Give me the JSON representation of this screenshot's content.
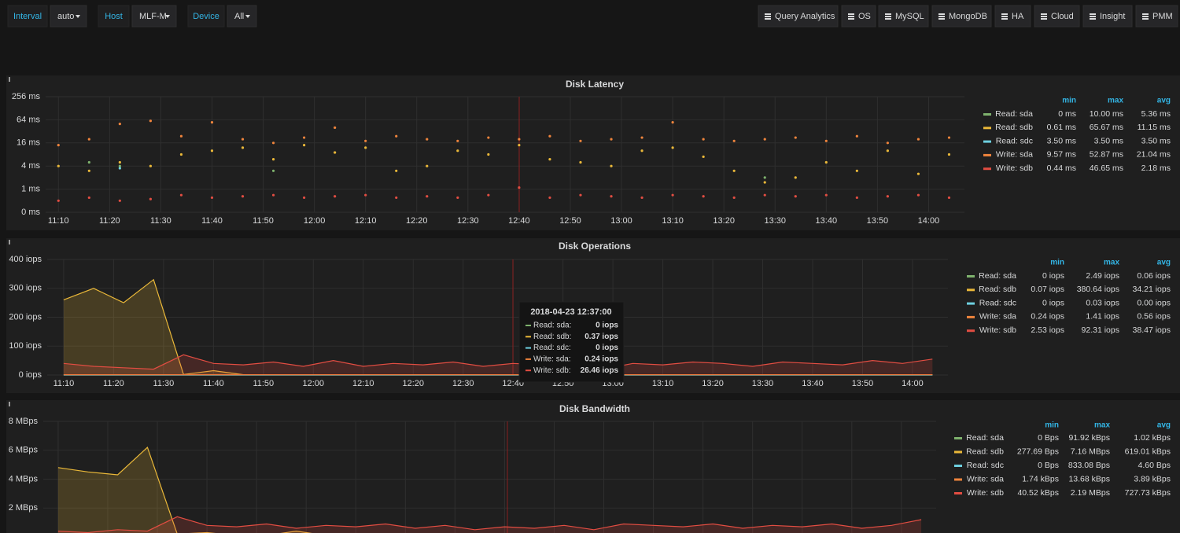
{
  "variables": [
    {
      "name": "Interval",
      "value": "auto"
    },
    {
      "name": "Host",
      "value": "MLF-M"
    },
    {
      "name": "Device",
      "value": "All"
    }
  ],
  "links": [
    "Query Analytics",
    "OS",
    "MySQL",
    "MongoDB",
    "HA",
    "Cloud",
    "Insight",
    "PMM"
  ],
  "panels": [
    {
      "chart_data": {
        "type": "scatter",
        "title": "Disk Latency",
        "yscale": "log",
        "x": [
          670,
          676,
          682,
          688,
          694,
          700,
          706,
          712,
          718,
          724,
          730,
          736,
          742,
          748,
          754,
          760,
          766,
          772,
          778,
          784,
          790,
          796,
          802,
          808,
          814,
          820,
          826,
          832,
          838,
          844
        ],
        "xlim": [
          667.5,
          847
        ],
        "xticks": [
          {
            "value": 670,
            "label": "11:10"
          },
          {
            "value": 680,
            "label": "11:20"
          },
          {
            "value": 690,
            "label": "11:30"
          },
          {
            "value": 700,
            "label": "11:40"
          },
          {
            "value": 710,
            "label": "11:50"
          },
          {
            "value": 720,
            "label": "12:00"
          },
          {
            "value": 730,
            "label": "12:10"
          },
          {
            "value": 740,
            "label": "12:20"
          },
          {
            "value": 750,
            "label": "12:30"
          },
          {
            "value": 760,
            "label": "12:40"
          },
          {
            "value": 770,
            "label": "12:50"
          },
          {
            "value": 780,
            "label": "13:00"
          },
          {
            "value": 790,
            "label": "13:10"
          },
          {
            "value": 800,
            "label": "13:20"
          },
          {
            "value": 810,
            "label": "13:30"
          },
          {
            "value": 820,
            "label": "13:40"
          },
          {
            "value": 830,
            "label": "13:50"
          },
          {
            "value": 840,
            "label": "14:00"
          }
        ],
        "ylim": [
          0.25,
          256
        ],
        "yticks": [
          {
            "value": 0.25,
            "label": "0 ms"
          },
          {
            "value": 1,
            "label": "1 ms"
          },
          {
            "value": 4,
            "label": "4 ms"
          },
          {
            "value": 16,
            "label": "16 ms"
          },
          {
            "value": 64,
            "label": "64 ms"
          },
          {
            "value": 256,
            "label": "256 ms"
          }
        ],
        "series": [
          {
            "name": "Read: sda",
            "color": "#7eb26d",
            "values": [
              null,
              5,
              4,
              null,
              null,
              null,
              null,
              3,
              null,
              null,
              null,
              null,
              null,
              null,
              null,
              null,
              null,
              null,
              null,
              null,
              null,
              null,
              null,
              2,
              null,
              null,
              null,
              null,
              null,
              null
            ]
          },
          {
            "name": "Read: sdb",
            "color": "#eab839",
            "values": [
              4,
              3,
              5,
              4,
              8,
              10,
              12,
              6,
              14,
              9,
              12,
              3,
              4,
              10,
              8,
              14,
              6,
              5,
              4,
              10,
              12,
              7,
              3,
              1.5,
              2,
              5,
              3,
              10,
              2.5,
              8
            ]
          },
          {
            "name": "Read: sdc",
            "color": "#6ed0e0",
            "values": [
              null,
              null,
              3.5,
              null,
              null,
              null,
              null,
              null,
              null,
              null,
              null,
              null,
              null,
              null,
              null,
              null,
              null,
              null,
              null,
              null,
              null,
              null,
              null,
              null,
              null,
              null,
              null,
              null,
              null,
              null
            ]
          },
          {
            "name": "Write: sda",
            "color": "#ef843c",
            "values": [
              14,
              20,
              50,
              60,
              24,
              55,
              20,
              16,
              22,
              40,
              18,
              24,
              20,
              18,
              22,
              20,
              24,
              18,
              20,
              22,
              55,
              20,
              18,
              20,
              22,
              18,
              24,
              16,
              20,
              22
            ]
          },
          {
            "name": "Write: sdb",
            "color": "#e24d42",
            "values": [
              0.5,
              0.6,
              0.5,
              0.55,
              0.7,
              0.6,
              0.65,
              0.7,
              0.6,
              0.65,
              0.7,
              0.6,
              0.65,
              0.6,
              0.7,
              1.1,
              0.6,
              0.7,
              0.65,
              0.6,
              0.7,
              0.65,
              0.6,
              0.7,
              0.65,
              0.7,
              0.6,
              0.65,
              0.7,
              0.6
            ]
          }
        ]
      },
      "legend": {
        "columns": [
          "min",
          "max",
          "avg"
        ],
        "rows": [
          [
            "0 ms",
            "10.00 ms",
            "5.36 ms"
          ],
          [
            "0.61 ms",
            "65.67 ms",
            "11.15 ms"
          ],
          [
            "3.50 ms",
            "3.50 ms",
            "3.50 ms"
          ],
          [
            "9.57 ms",
            "52.87 ms",
            "21.04 ms"
          ],
          [
            "0.44 ms",
            "46.65 ms",
            "2.18 ms"
          ]
        ]
      }
    },
    {
      "chart_data": {
        "type": "area",
        "title": "Disk Operations",
        "x": [
          670,
          676,
          682,
          688,
          694,
          700,
          706,
          712,
          718,
          724,
          730,
          736,
          742,
          748,
          754,
          760,
          766,
          772,
          778,
          784,
          790,
          796,
          802,
          808,
          814,
          820,
          826,
          832,
          838,
          844
        ],
        "xlim": [
          666.7,
          847.1
        ],
        "xticks": [
          {
            "value": 670,
            "label": "11:10"
          },
          {
            "value": 680,
            "label": "11:20"
          },
          {
            "value": 690,
            "label": "11:30"
          },
          {
            "value": 700,
            "label": "11:40"
          },
          {
            "value": 710,
            "label": "11:50"
          },
          {
            "value": 720,
            "label": "12:00"
          },
          {
            "value": 730,
            "label": "12:10"
          },
          {
            "value": 740,
            "label": "12:20"
          },
          {
            "value": 750,
            "label": "12:30"
          },
          {
            "value": 760,
            "label": "12:40"
          },
          {
            "value": 770,
            "label": "12:50"
          },
          {
            "value": 780,
            "label": "13:00"
          },
          {
            "value": 790,
            "label": "13:10"
          },
          {
            "value": 800,
            "label": "13:20"
          },
          {
            "value": 810,
            "label": "13:30"
          },
          {
            "value": 820,
            "label": "13:40"
          },
          {
            "value": 830,
            "label": "13:50"
          },
          {
            "value": 840,
            "label": "14:00"
          }
        ],
        "ylim": [
          0,
          400
        ],
        "yticks": [
          {
            "value": 0,
            "label": "0 iops"
          },
          {
            "value": 100,
            "label": "100 iops"
          },
          {
            "value": 200,
            "label": "200 iops"
          },
          {
            "value": 300,
            "label": "300 iops"
          },
          {
            "value": 400,
            "label": "400 iops"
          }
        ],
        "series": [
          {
            "name": "Read: sda",
            "color": "#7eb26d",
            "values": [
              0,
              0,
              0,
              0,
              0,
              0,
              0,
              0,
              0,
              0,
              0,
              0,
              0,
              0,
              0,
              0,
              0,
              0,
              0,
              0,
              0,
              0,
              0,
              0,
              0,
              0,
              0,
              0,
              0,
              0
            ]
          },
          {
            "name": "Read: sdb",
            "color": "#eab839",
            "values": [
              260,
              300,
              250,
              330,
              2,
              15,
              1,
              1,
              1,
              1,
              1,
              1,
              1,
              1,
              1,
              1,
              1,
              1,
              1,
              1,
              1,
              1,
              1,
              1,
              1,
              1,
              1,
              1,
              1,
              1
            ]
          },
          {
            "name": "Read: sdc",
            "color": "#6ed0e0",
            "values": [
              0,
              0,
              0,
              0,
              0,
              0,
              0,
              0,
              0,
              0,
              0,
              0,
              0,
              0,
              0,
              0,
              0,
              0,
              0,
              0,
              0,
              0,
              0,
              0,
              0,
              0,
              0,
              0,
              0,
              0
            ]
          },
          {
            "name": "Write: sda",
            "color": "#ef843c",
            "values": [
              1,
              1,
              1,
              1,
              1,
              1,
              1,
              1,
              1,
              1,
              1,
              1,
              1,
              1,
              1,
              1,
              1,
              1,
              1,
              1,
              1,
              1,
              1,
              1,
              1,
              1,
              1,
              1,
              1,
              1
            ]
          },
          {
            "name": "Write: sdb",
            "color": "#e24d42",
            "values": [
              40,
              30,
              25,
              20,
              70,
              40,
              35,
              45,
              30,
              50,
              30,
              40,
              35,
              45,
              30,
              40,
              35,
              30,
              20,
              40,
              35,
              45,
              40,
              30,
              45,
              40,
              35,
              50,
              40,
              55
            ]
          }
        ]
      },
      "legend": {
        "columns": [
          "min",
          "max",
          "avg"
        ],
        "rows": [
          [
            "0 iops",
            "2.49 iops",
            "0.06 iops"
          ],
          [
            "0.07 iops",
            "380.64 iops",
            "34.21 iops"
          ],
          [
            "0 iops",
            "0.03 iops",
            "0.00 iops"
          ],
          [
            "0.24 iops",
            "1.41 iops",
            "0.56 iops"
          ],
          [
            "2.53 iops",
            "92.31 iops",
            "38.47 iops"
          ]
        ]
      },
      "tooltip": {
        "time": "2018-04-23 12:37:00",
        "rows": [
          {
            "name": "Read: sda:",
            "value": "0 iops"
          },
          {
            "name": "Read: sdb:",
            "value": "0.37 iops"
          },
          {
            "name": "Read: sdc:",
            "value": "0 iops"
          },
          {
            "name": "Write: sda:",
            "value": "0.24 iops"
          },
          {
            "name": "Write: sdb:",
            "value": "26.46 iops"
          }
        ]
      }
    },
    {
      "chart_data": {
        "type": "area",
        "title": "Disk Bandwidth",
        "x": [
          670,
          676,
          682,
          688,
          694,
          700,
          706,
          712,
          718,
          724,
          730,
          736,
          742,
          748,
          754,
          760,
          766,
          772,
          778,
          784,
          790,
          796,
          802,
          808,
          814,
          820,
          826,
          832,
          838,
          844
        ],
        "xlim": [
          667,
          847
        ],
        "xticks": [
          670,
          680,
          690,
          700,
          710,
          720,
          730,
          740,
          750,
          760,
          770,
          780,
          790,
          800,
          810,
          820,
          830,
          840
        ],
        "ylim": [
          0,
          8
        ],
        "yticks": [
          {
            "value": 2,
            "label": "2 MBps"
          },
          {
            "value": 4,
            "label": "4 MBps"
          },
          {
            "value": 6,
            "label": "6 MBps"
          },
          {
            "value": 8,
            "label": "8 MBps"
          }
        ],
        "series": [
          {
            "name": "Read: sda",
            "color": "#7eb26d",
            "values": [
              0,
              0,
              0,
              0,
              0,
              0,
              0,
              0,
              0,
              0,
              0,
              0,
              0,
              0,
              0,
              0,
              0,
              0,
              0,
              0,
              0,
              0,
              0,
              0,
              0,
              0,
              0,
              0,
              0,
              0
            ]
          },
          {
            "name": "Read: sdb",
            "color": "#eab839",
            "values": [
              4.8,
              4.5,
              4.3,
              6.2,
              0.2,
              0.3,
              0.1,
              0.1,
              0.4,
              0.1,
              0.1,
              0.1,
              0.1,
              0.1,
              0.1,
              0.1,
              0.1,
              0.1,
              0.1,
              0.1,
              0.1,
              0.1,
              0.1,
              0.1,
              0.1,
              0.1,
              0.1,
              0.1,
              0.1,
              0.1
            ]
          },
          {
            "name": "Read: sdc",
            "color": "#6ed0e0",
            "values": [
              0,
              0,
              0,
              0,
              0,
              0,
              0,
              0,
              0,
              0,
              0,
              0,
              0,
              0,
              0,
              0,
              0,
              0,
              0,
              0,
              0,
              0,
              0,
              0,
              0,
              0,
              0,
              0,
              0,
              0
            ]
          },
          {
            "name": "Write: sda",
            "color": "#ef843c",
            "values": [
              0.01,
              0.01,
              0.01,
              0.01,
              0.01,
              0.01,
              0.01,
              0.01,
              0.01,
              0.01,
              0.01,
              0.01,
              0.01,
              0.01,
              0.01,
              0.01,
              0.01,
              0.01,
              0.01,
              0.01,
              0.01,
              0.01,
              0.01,
              0.01,
              0.01,
              0.01,
              0.01,
              0.01,
              0.01,
              0.01
            ]
          },
          {
            "name": "Write: sdb",
            "color": "#e24d42",
            "values": [
              0.4,
              0.3,
              0.5,
              0.4,
              1.4,
              0.8,
              0.7,
              0.9,
              0.6,
              0.8,
              0.7,
              0.9,
              0.6,
              0.8,
              0.5,
              0.7,
              0.6,
              0.8,
              0.5,
              0.9,
              0.8,
              0.7,
              0.9,
              0.6,
              0.8,
              0.7,
              0.9,
              0.6,
              0.8,
              1.2
            ]
          }
        ]
      },
      "legend": {
        "columns": [
          "min",
          "max",
          "avg"
        ],
        "rows": [
          [
            "0 Bps",
            "91.92 kBps",
            "1.02 kBps"
          ],
          [
            "277.69 Bps",
            "7.16 MBps",
            "619.01 kBps"
          ],
          [
            "0 Bps",
            "833.08 Bps",
            "4.60 Bps"
          ],
          [
            "1.74 kBps",
            "13.68 kBps",
            "3.89 kBps"
          ],
          [
            "40.52 kBps",
            "2.19 MBps",
            "727.73 kBps"
          ]
        ]
      }
    }
  ]
}
